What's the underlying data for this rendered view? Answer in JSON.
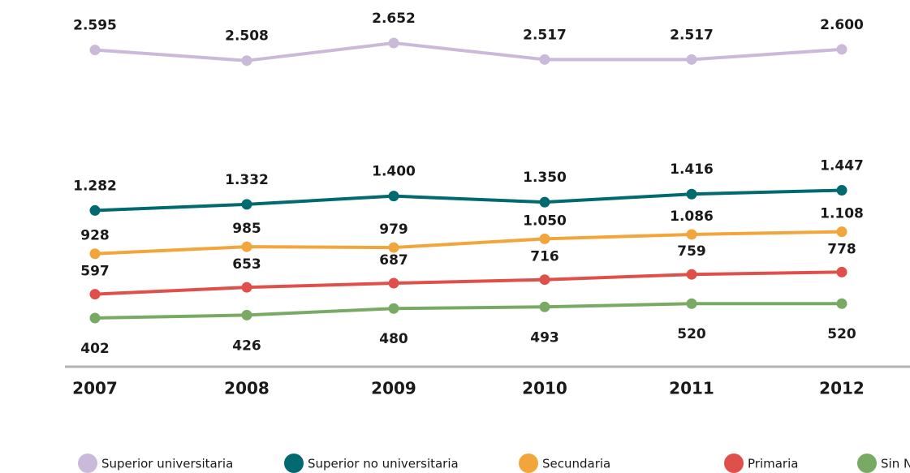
{
  "chart_data": {
    "type": "line",
    "categories": [
      "2007",
      "2008",
      "2009",
      "2010",
      "2011",
      "2012"
    ],
    "series": [
      {
        "name": "Superior universitaria",
        "color": "#cbb9d9",
        "values": [
          2595,
          2508,
          2652,
          2517,
          2517,
          2600
        ],
        "value_labels": [
          "2.595",
          "2.508",
          "2.652",
          "2.517",
          "2.517",
          "2.600"
        ]
      },
      {
        "name": "Superior no universitaria",
        "color": "#006a70",
        "values": [
          1282,
          1332,
          1400,
          1350,
          1416,
          1447
        ],
        "value_labels": [
          "1.282",
          "1.332",
          "1.400",
          "1.350",
          "1.416",
          "1.447"
        ]
      },
      {
        "name": "Secundaria",
        "color": "#f2a53a",
        "values": [
          928,
          985,
          979,
          1050,
          1086,
          1108
        ],
        "value_labels": [
          "928",
          "985",
          "979",
          "1.050",
          "1.086",
          "1.108"
        ]
      },
      {
        "name": "Primaria",
        "color": "#e0504a",
        "values": [
          597,
          653,
          687,
          716,
          759,
          778
        ],
        "value_labels": [
          "597",
          "653",
          "687",
          "716",
          "759",
          "778"
        ]
      },
      {
        "name": "Sin Nivel",
        "color": "#79aa63",
        "values": [
          402,
          426,
          480,
          493,
          520,
          520
        ],
        "value_labels": [
          "402",
          "426",
          "480",
          "493",
          "520",
          "520"
        ]
      }
    ],
    "legend": "bottom"
  }
}
